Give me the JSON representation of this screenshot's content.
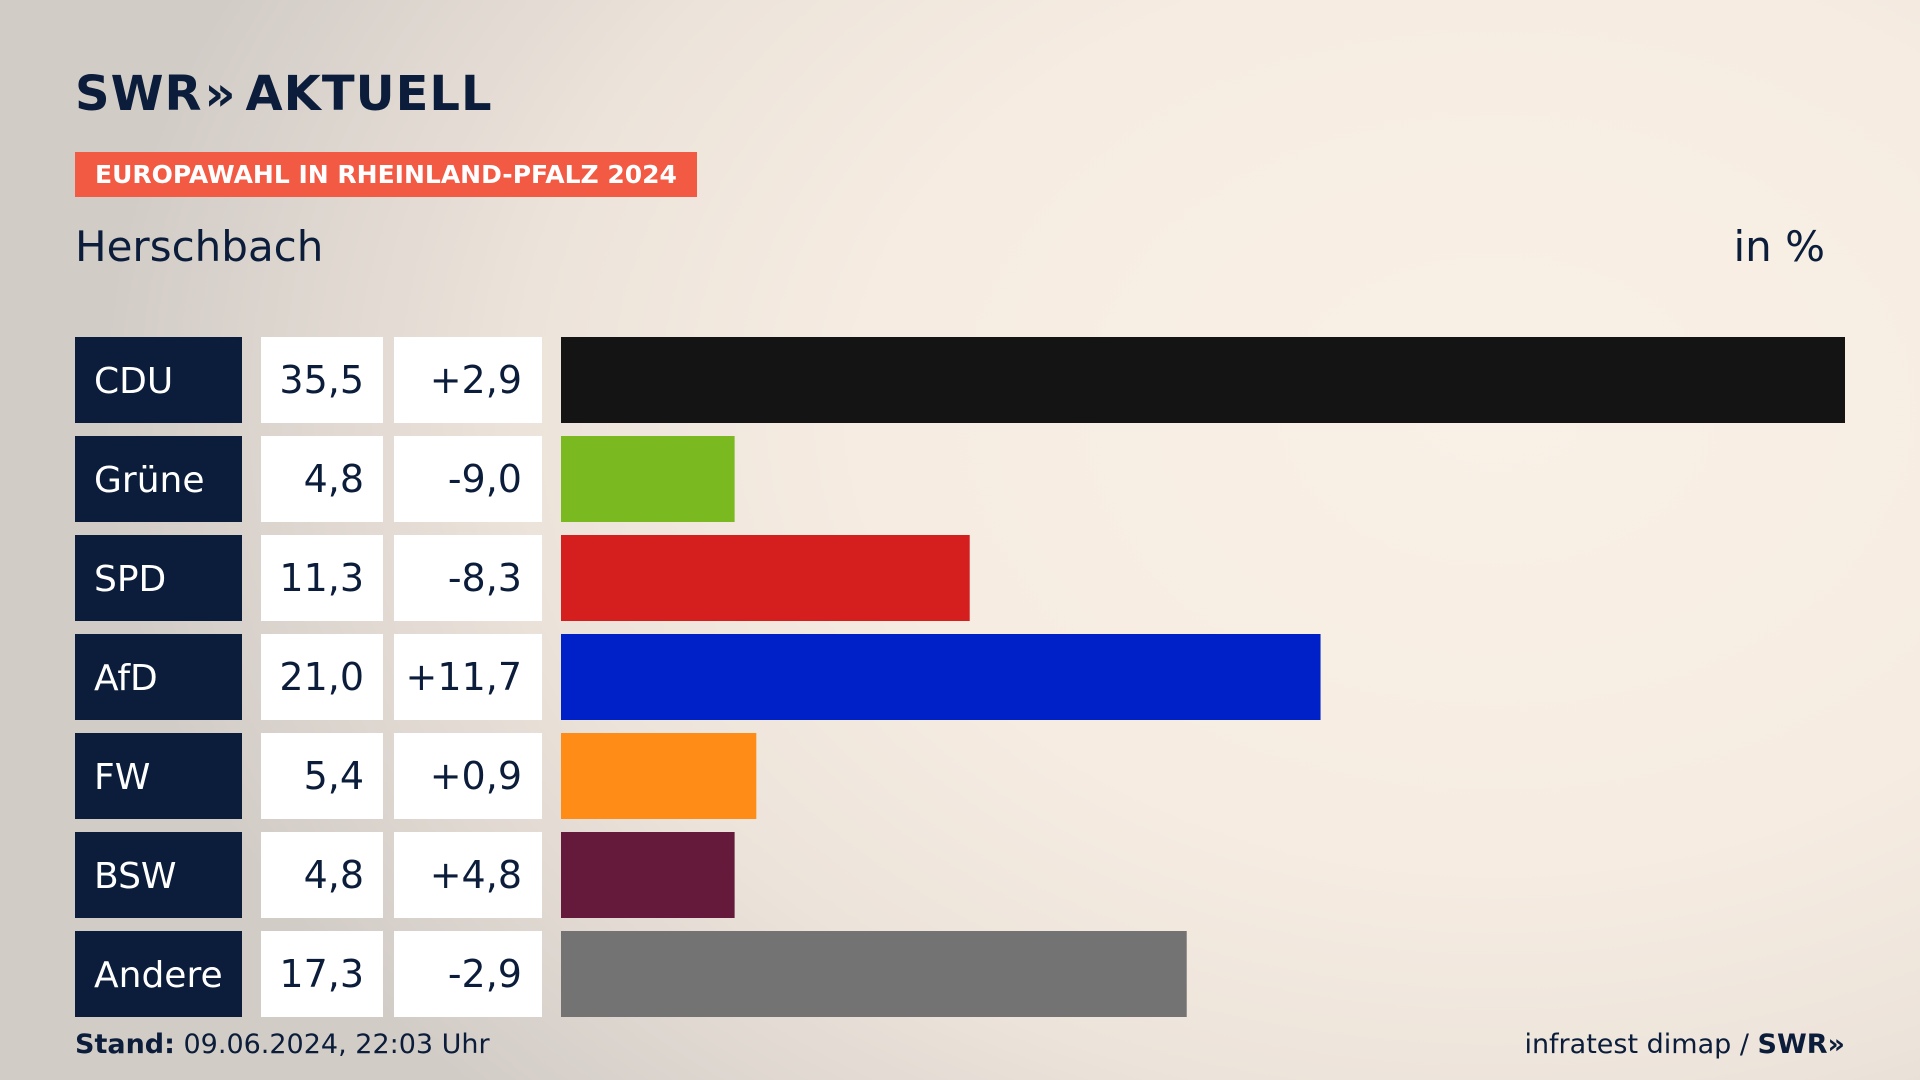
{
  "header": {
    "logo_text": "SWR",
    "logo_chevrons": "»",
    "logo_suffix": "AKTUELL",
    "badge": "EUROPAWAHL IN RHEINLAND-PFALZ 2024",
    "subtitle": "Herschbach",
    "unit": "in %"
  },
  "footer": {
    "stand_label": "Stand:",
    "stand_value": " 09.06.2024, 22:03 Uhr",
    "source": "infratest dimap / ",
    "source_logo": "SWR»"
  },
  "colors": {
    "label_bg": "#0b1d3a",
    "value_bg": "#ffffff",
    "badge": "#f25a44"
  },
  "chart_data": {
    "type": "bar",
    "orientation": "horizontal",
    "categories": [
      "CDU",
      "Grüne",
      "SPD",
      "AfD",
      "FW",
      "BSW",
      "Andere"
    ],
    "values": [
      35.5,
      4.8,
      11.3,
      21.0,
      5.4,
      4.8,
      17.3
    ],
    "values_text": [
      "35,5",
      "4,8",
      "11,3",
      "21,0",
      "5,4",
      "4,8",
      "17,3"
    ],
    "changes_text": [
      "+2,9",
      "-9,0",
      "-8,3",
      "+11,7",
      "+0,9",
      "+4,8",
      "-2,9"
    ],
    "colors": [
      "#141414",
      "#7ab920",
      "#d51f1f",
      "#0021c8",
      "#ff8c17",
      "#651a3c",
      "#737373"
    ],
    "xlim": [
      0,
      35.5
    ],
    "grid": false,
    "legend": "none"
  }
}
